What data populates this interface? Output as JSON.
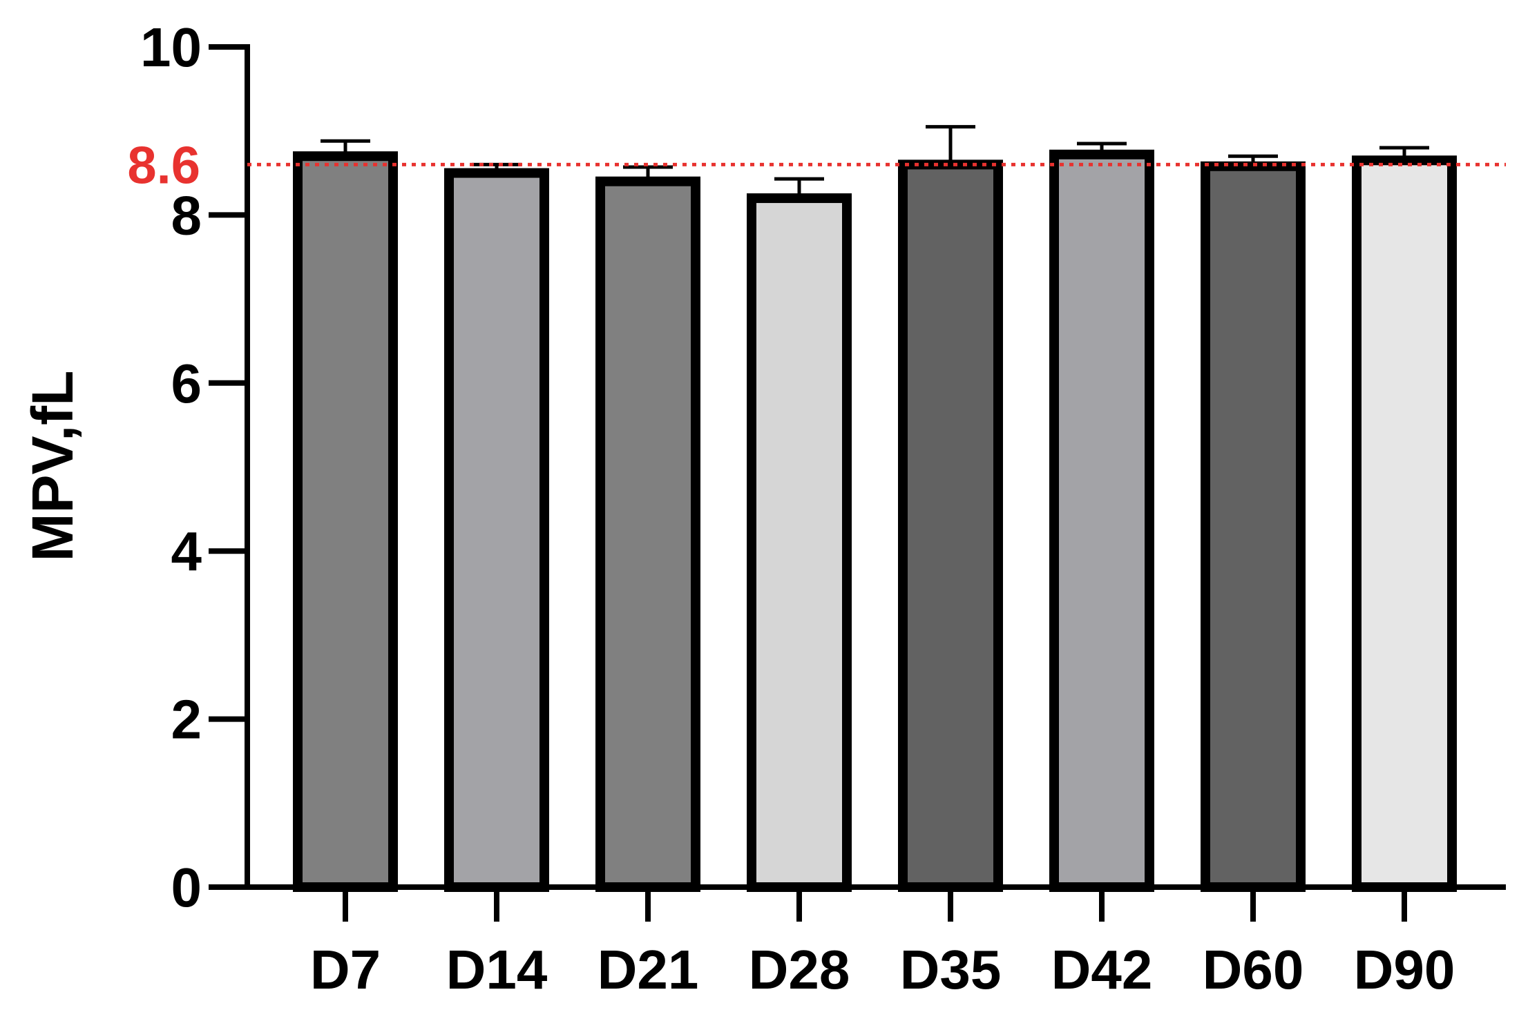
{
  "chart_data": {
    "type": "bar",
    "title": "",
    "xlabel": "",
    "ylabel": "MPV,fL",
    "categories": [
      "D7",
      "D14",
      "D21",
      "D28",
      "D35",
      "D42",
      "D60",
      "D90"
    ],
    "values": [
      8.7,
      8.5,
      8.4,
      8.2,
      8.6,
      8.72,
      8.58,
      8.65
    ],
    "error_upper": [
      8.88,
      8.6,
      8.57,
      8.43,
      9.05,
      8.85,
      8.7,
      8.8
    ],
    "fill_colors": [
      "#808080",
      "#a3a3a7",
      "#808080",
      "#d6d6d6",
      "#626262",
      "#a3a3a7",
      "#626262",
      "#e6e6e6"
    ],
    "ylim": [
      0,
      10
    ],
    "yticks": [
      0,
      2,
      4,
      6,
      8,
      10
    ],
    "reference_line": {
      "value": 8.6,
      "label": "8.6",
      "color": "#e8322f",
      "style": "dotted"
    },
    "grid": false,
    "legend": "none"
  }
}
